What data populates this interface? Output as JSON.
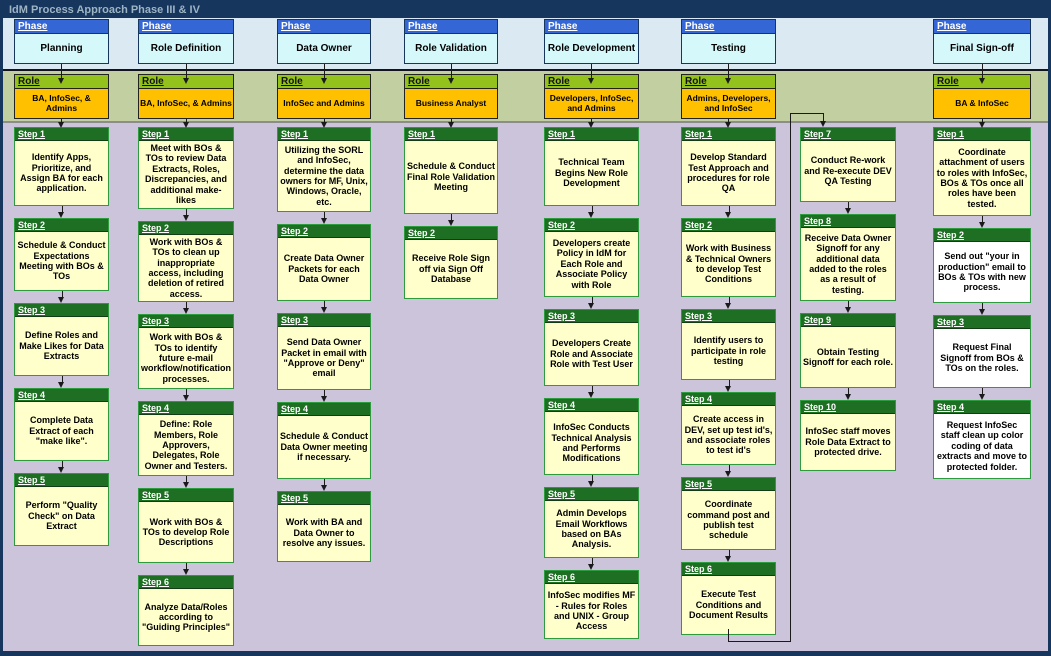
{
  "title": "IdM Process Approach Phase III & IV",
  "labels": {
    "phase": "Phase",
    "role": "Role"
  },
  "colors": {
    "frame_navy": "#17365D",
    "title_text": "#9DB4C4",
    "phase_band": "#DAE9F2",
    "role_band": "#C2CFA0",
    "main_band": "#CBC4DB",
    "phase_header": "#3566D6",
    "phase_body": "#D5F8FA",
    "role_header": "#94C21D",
    "role_body": "#FFC000",
    "step_header": "#1E6F23",
    "step_body": "#FFFFCC",
    "step_body_alt": "#FFFFFF",
    "step_border": "#2F9B3F"
  },
  "columns": [
    {
      "phase": "Planning",
      "role": "BA, InfoSec, & Admins",
      "steps": [
        {
          "label": "Step 1",
          "text": "Identify Apps, Prioritize, and Assign BA for each application."
        },
        {
          "label": "Step 2",
          "text": "Schedule & Conduct Expectations Meeting with BOs & TOs"
        },
        {
          "label": "Step 3",
          "text": "Define Roles and Make Likes for Data Extracts"
        },
        {
          "label": "Step 4",
          "text": "Complete Data Extract of each \"make like\"."
        },
        {
          "label": "Step 5",
          "text": "Perform \"Quality Check\" on Data Extract"
        }
      ]
    },
    {
      "phase": "Role Definition",
      "role": "BA, InfoSec, & Admins",
      "steps": [
        {
          "label": "Step 1",
          "text": "Meet with BOs & TOs to review Data Extracts, Roles, Discrepancies, and additional make-likes"
        },
        {
          "label": "Step 2",
          "text": "Work with BOs & TOs to clean up inappropriate access, including deletion of retired access."
        },
        {
          "label": "Step 3",
          "text": "Work with BOs & TOs to identify future e-mail workflow/notification processes."
        },
        {
          "label": "Step 4",
          "text": "Define: Role Members, Role Approvers, Delegates, Role Owner and Testers."
        },
        {
          "label": "Step 5",
          "text": "Work with BOs & TOs to develop Role Descriptions"
        },
        {
          "label": "Step 6",
          "text": "Analyze Data/Roles according to \"Guiding Principles\""
        }
      ]
    },
    {
      "phase": "Data Owner",
      "role": "InfoSec and Admins",
      "steps": [
        {
          "label": "Step 1",
          "text": "Utilizing the SORL and InfoSec, determine the data owners for MF, Unix, Windows, Oracle, etc."
        },
        {
          "label": "Step 2",
          "text": "Create Data Owner Packets for each Data Owner"
        },
        {
          "label": "Step 3",
          "text": "Send Data Owner Packet in email with \"Approve or Deny\" email"
        },
        {
          "label": "Step 4",
          "text": "Schedule & Conduct Data Owner meeting if necessary."
        },
        {
          "label": "Step 5",
          "text": "Work with BA and Data Owner to resolve any issues."
        }
      ]
    },
    {
      "phase": "Role Validation",
      "role": "Business Analyst",
      "steps": [
        {
          "label": "Step 1",
          "text": "Schedule & Conduct Final Role Validation Meeting"
        },
        {
          "label": "Step 2",
          "text": "Receive Role Sign off via Sign Off Database"
        }
      ]
    },
    {
      "phase": "Role Development",
      "role": "Developers, InfoSec, and Admins",
      "steps": [
        {
          "label": "Step 1",
          "text": "Technical Team Begins New Role Development"
        },
        {
          "label": "Step 2",
          "text": "Developers create Policy in IdM for Each Role and Associate Policy with Role"
        },
        {
          "label": "Step 3",
          "text": "Developers Create Role and Associate Role with Test User"
        },
        {
          "label": "Step 4",
          "text": "InfoSec Conducts Technical Analysis and Performs Modifications"
        },
        {
          "label": "Step 5",
          "text": "Admin Develops Email Workflows based on BAs Analysis."
        },
        {
          "label": "Step 6",
          "text": "InfoSec modifies MF - Rules for Roles and UNIX - Group Access"
        }
      ]
    },
    {
      "phase": "Testing",
      "role": "Admins, Developers, and InfoSec",
      "steps": [
        {
          "label": "Step 1",
          "text": "Develop Standard Test Approach and procedures for role QA"
        },
        {
          "label": "Step 2",
          "text": "Work with Business & Technical Owners to develop Test Conditions"
        },
        {
          "label": "Step 3",
          "text": "Identify users to participate in role testing"
        },
        {
          "label": "Step 4",
          "text": "Create access in DEV, set up test id's, and associate roles to test id's"
        },
        {
          "label": "Step 5",
          "text": "Coordinate command post and publish test schedule"
        },
        {
          "label": "Step 6",
          "text": "Execute Test Conditions and Document Results"
        }
      ],
      "steps2": [
        {
          "label": "Step 7",
          "text": "Conduct Re-work and Re-execute DEV QA Testing"
        },
        {
          "label": "Step 8",
          "text": "Receive Data Owner Signoff for any additional data added to the roles as a result of testing."
        },
        {
          "label": "Step 9",
          "text": "Obtain Testing Signoff for each role."
        },
        {
          "label": "Step 10",
          "text": "InfoSec staff moves Role Data Extract to protected drive."
        }
      ]
    },
    {
      "phase": "Final Sign-off",
      "role": "BA & InfoSec",
      "steps": [
        {
          "label": "Step 1",
          "text": "Coordinate attachment of users to roles with InfoSec, BOs & TOs once all roles have been tested."
        },
        {
          "label": "Step 2",
          "text": "Send out \"your in production\" email to BOs & TOs with new process.",
          "body_color": "#FFFFFF"
        },
        {
          "label": "Step 3",
          "text": "Request Final Signoff from BOs & TOs on the roles.",
          "body_color": "#FFFFFF"
        },
        {
          "label": "Step 4",
          "text": "Request InfoSec staff clean up color coding of data extracts and move to protected folder.",
          "body_color": "#FFFFFF"
        }
      ]
    }
  ]
}
